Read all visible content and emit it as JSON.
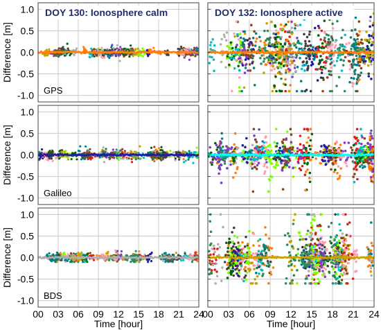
{
  "chart_data": {
    "type": "scatter",
    "panels_layout": "3 rows x 2 columns",
    "grid": true,
    "xlabel": "Time [hour]",
    "ylabel": "Difference [m]",
    "xlim": [
      0,
      24
    ],
    "ylim": [
      -1.15,
      1.15
    ],
    "xticks": [
      "00",
      "03",
      "06",
      "09",
      "12",
      "15",
      "18",
      "21",
      "24"
    ],
    "xtick_values": [
      0,
      3,
      6,
      9,
      12,
      15,
      18,
      21,
      24
    ],
    "yticks": [
      "1.0",
      "0.5",
      "0.0",
      "-0.5",
      "-1.0"
    ],
    "ytick_values": [
      1.0,
      0.5,
      0.0,
      -0.5,
      -1.0
    ],
    "column_titles": [
      "DOY 130: Ionosphere calm",
      "DOY 132: Ionosphere active"
    ],
    "row_labels": [
      "GPS",
      "Galileo",
      "BDS"
    ],
    "title_color": "#1f2d6b",
    "series_colors": [
      "#ff7f0e",
      "#1f1f9e",
      "#e41a1c",
      "#00bfc4",
      "#2e8b57",
      "#8b4513",
      "#7f3fbf",
      "#b0b0b0",
      "#ff9fb0",
      "#7fff00",
      "#006400",
      "#c8a000",
      "#008080",
      "#404040"
    ],
    "panels": [
      {
        "system": "GPS",
        "condition": "calm",
        "approx_range": [
          -0.2,
          0.2
        ],
        "typical_spread": 0.05,
        "dominant_color": "#ff7f0e"
      },
      {
        "system": "GPS",
        "condition": "active",
        "approx_range": [
          -0.9,
          0.9
        ],
        "typical_spread": 0.22,
        "dominant_color": "#ff7f0e"
      },
      {
        "system": "Galileo",
        "condition": "calm",
        "approx_range": [
          -0.25,
          0.2
        ],
        "typical_spread": 0.06,
        "dominant_color": "#1f1f9e"
      },
      {
        "system": "Galileo",
        "condition": "active",
        "approx_range": [
          -0.85,
          0.6
        ],
        "typical_spread": 0.12,
        "dominant_color": "#00ffff"
      },
      {
        "system": "BDS",
        "condition": "calm",
        "approx_range": [
          -0.1,
          0.28
        ],
        "typical_spread": 0.05,
        "dominant_color": "#b0b0b0"
      },
      {
        "system": "BDS",
        "condition": "active",
        "approx_range": [
          -0.6,
          1.0
        ],
        "typical_spread": 0.2,
        "dominant_color": "#c8a000"
      }
    ]
  }
}
